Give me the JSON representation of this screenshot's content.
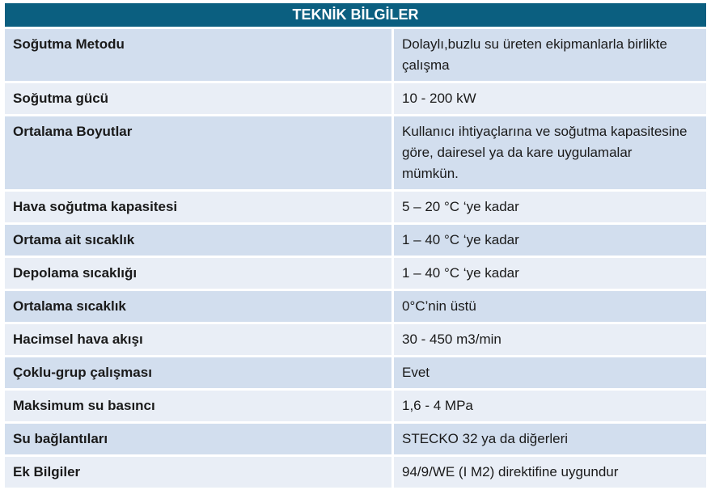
{
  "title": "TEKNİK BİLGİLER",
  "rows": [
    {
      "key": "Soğutma Metodu",
      "value": "Dolaylı,buzlu su üreten ekipmanlarla birlikte çalışma"
    },
    {
      "key": "Soğutma gücü",
      "value": "10 - 200 kW"
    },
    {
      "key": "Ortalama Boyutlar",
      "value": "Kullanıcı ihtiyaçlarına ve soğutma kapasitesine göre, dairesel ya da kare uygulamalar mümkün."
    },
    {
      "key": "Hava soğutma kapasitesi",
      "value": "5 – 20 °C ‘ye kadar"
    },
    {
      "key": "Ortama ait sıcaklık",
      "value": "1 – 40 °C ‘ye kadar"
    },
    {
      "key": "Depolama sıcaklığı",
      "value": "1 – 40 °C ‘ye kadar"
    },
    {
      "key": "Ortalama sıcaklık",
      "value": "0°C’nin üstü"
    },
    {
      "key": "Hacimsel hava akışı",
      "value": "30 - 450 m3/min"
    },
    {
      "key": "Çoklu-grup çalışması",
      "value": "Evet"
    },
    {
      "key": "Maksimum su basıncı",
      "value": "1,6 - 4 MPa"
    },
    {
      "key": "Su bağlantıları",
      "value": "STECKO 32 ya da diğerleri"
    },
    {
      "key": "Ek Bilgiler",
      "value": "94/9/WE (I M2) direktifine uygundur"
    }
  ]
}
